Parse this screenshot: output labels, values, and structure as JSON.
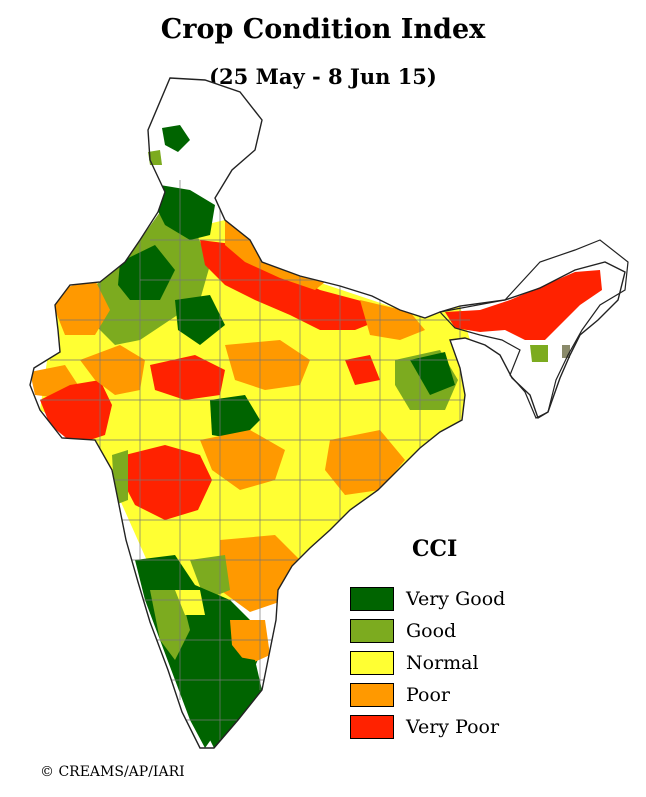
{
  "map": {
    "title": "Crop Condition Index",
    "subtitle": "(25 May - 8 Jun 15)",
    "credit": "© CREAMS/AP/IARI"
  },
  "legend": {
    "title": "CCI",
    "items": [
      {
        "label": "Very Good",
        "color": "#006400"
      },
      {
        "label": "Good",
        "color": "#7cab1f"
      },
      {
        "label": "Normal",
        "color": "#ffff33"
      },
      {
        "label": "Poor",
        "color": "#ff9900"
      },
      {
        "label": "Very Poor",
        "color": "#ff2200"
      }
    ]
  },
  "colors": {
    "no_data": "#ffffff",
    "boundary": "#555555",
    "state_boundary": "#000000"
  }
}
